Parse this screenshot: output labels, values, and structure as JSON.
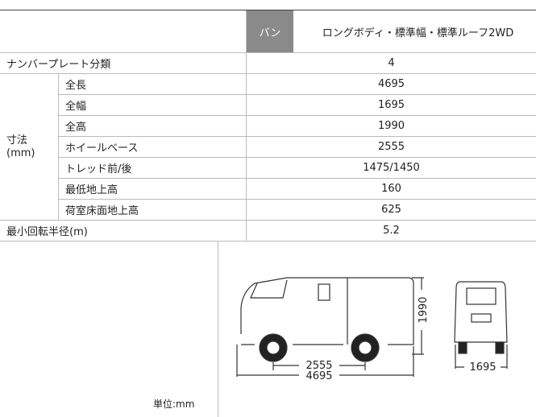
{
  "header": {
    "grade": "バン",
    "model": "ロングボディ・標準幅・標準ルーフ2WD"
  },
  "plate": {
    "label": "ナンバープレート分類",
    "value": 4
  },
  "dimensions": {
    "group": "寸法",
    "unit": "(mm)",
    "rows": [
      {
        "label": "全長",
        "value": 4695
      },
      {
        "label": "全幅",
        "value": 1695
      },
      {
        "label": "全高",
        "value": 1990
      },
      {
        "label": "ホイールベース",
        "value": 2555
      },
      {
        "label": "トレッド前/後",
        "value": "1475/1450"
      },
      {
        "label": "最低地上高",
        "value": 160
      },
      {
        "label": "荷室床面地上高",
        "value": 625
      }
    ]
  },
  "turning": {
    "label": "最小回転半径(m)",
    "value": 5.2
  },
  "diagram": {
    "wheelbase": 2555,
    "length": 4695,
    "height": 1990,
    "width": 1695
  },
  "unit_note": "単位:mm"
}
